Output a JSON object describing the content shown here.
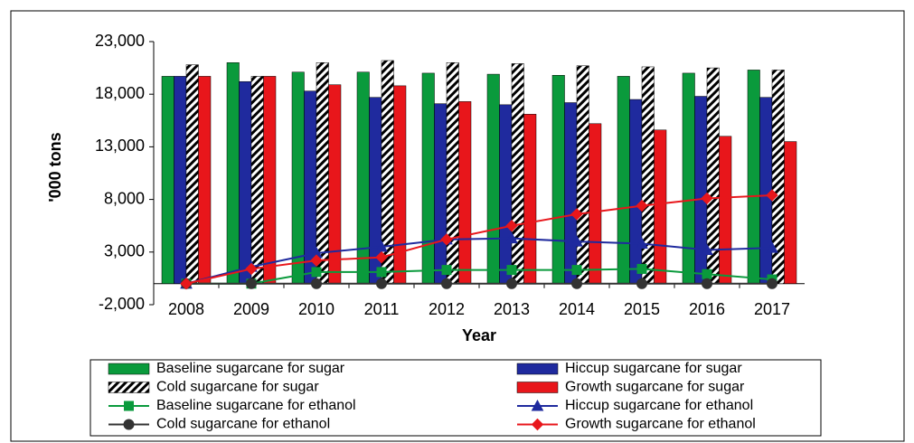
{
  "chart_data": {
    "type": "bar",
    "x_label": "Year",
    "y_label": "'000 tons",
    "categories": [
      "2008",
      "2009",
      "2010",
      "2011",
      "2012",
      "2013",
      "2014",
      "2015",
      "2016",
      "2017"
    ],
    "ylim": [
      -2000,
      23000
    ],
    "yticks": [
      {
        "value": -2000,
        "label": "-2,000"
      },
      {
        "value": 3000,
        "label": "3,000"
      },
      {
        "value": 8000,
        "label": "8,000"
      },
      {
        "value": 13000,
        "label": "13,000"
      },
      {
        "value": 18000,
        "label": "18,000"
      },
      {
        "value": 23000,
        "label": "23,000"
      }
    ],
    "series": [
      {
        "name": "Baseline sugarcane for sugar",
        "type": "bar",
        "color": "#0a9a3c",
        "values": [
          19700,
          21000,
          20100,
          20100,
          20000,
          19900,
          19800,
          19700,
          20000,
          20300
        ]
      },
      {
        "name": "Hiccup sugarcane for sugar",
        "type": "bar",
        "color": "#1f2a9e",
        "values": [
          19700,
          19200,
          18300,
          17700,
          17100,
          17000,
          17200,
          17500,
          17800,
          17700
        ]
      },
      {
        "name": "Cold sugarcane for sugar",
        "type": "bar",
        "color": "#000000",
        "hatch": true,
        "values": [
          20800,
          19700,
          21000,
          21200,
          21000,
          20900,
          20700,
          20600,
          20500,
          20300
        ]
      },
      {
        "name": "Growth sugarcane for sugar",
        "type": "bar",
        "color": "#e8161b",
        "values": [
          19700,
          19700,
          18900,
          18800,
          17300,
          16100,
          15200,
          14600,
          14000,
          13500
        ]
      },
      {
        "name": "Baseline sugarcane for ethanol",
        "type": "line",
        "marker": "square",
        "color": "#0a9a3c",
        "values": [
          0,
          0,
          1100,
          1100,
          1300,
          1300,
          1300,
          1400,
          900,
          400
        ]
      },
      {
        "name": "Hiccup sugarcane for ethanol",
        "type": "line",
        "marker": "triangle",
        "color": "#1f2a9e",
        "values": [
          0,
          1600,
          2900,
          3500,
          4200,
          4300,
          4000,
          3800,
          3200,
          3400
        ]
      },
      {
        "name": "Cold sugarcane for ethanol",
        "type": "line",
        "marker": "circle",
        "color": "#333333",
        "values": [
          0,
          0,
          0,
          0,
          0,
          0,
          0,
          0,
          0,
          0
        ]
      },
      {
        "name": "Growth sugarcane for ethanol",
        "type": "line",
        "marker": "diamond",
        "color": "#e8161b",
        "values": [
          0,
          1400,
          2200,
          2500,
          4200,
          5500,
          6600,
          7400,
          8100,
          8400
        ]
      }
    ]
  }
}
